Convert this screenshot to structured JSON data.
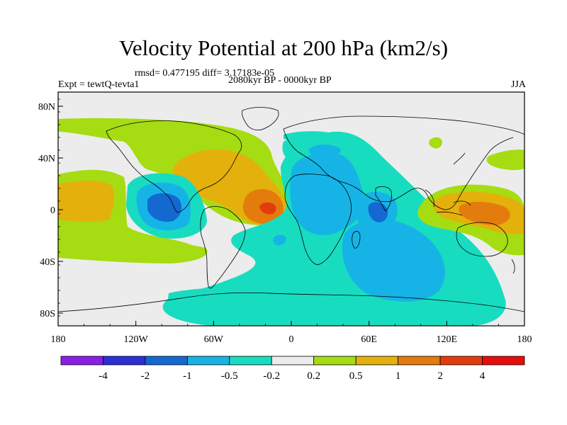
{
  "title": "Velocity Potential at 200 hPa (km2/s)",
  "stats_line": "rmsd= 0.477195 diff= 3.17183e-05",
  "experiment": "Expt = tewtQ-tevta1",
  "period": "2080kyr BP - 0000kyr BP",
  "season": "JJA",
  "axes": {
    "lon_ticks": [
      "180",
      "120W",
      "60W",
      "0",
      "60E",
      "120E",
      "180"
    ],
    "lat_ticks": [
      "80N",
      "40N",
      "0",
      "40S",
      "80S"
    ]
  },
  "colorbar": {
    "labels": [
      "-4",
      "-2",
      "-1",
      "-0.5",
      "-0.2",
      "0.2",
      "0.5",
      "1",
      "2",
      "4"
    ],
    "colors": [
      "#8c1fe6",
      "#2c2fd6",
      "#1469d0",
      "#16b4e6",
      "#18dcc0",
      "#ececec",
      "#a6dc12",
      "#e4b00c",
      "#e37c0c",
      "#e33c0c",
      "#e80c0c"
    ]
  },
  "map_colors": {
    "land_outline": "#000000",
    "neutral": "#ececec"
  }
}
